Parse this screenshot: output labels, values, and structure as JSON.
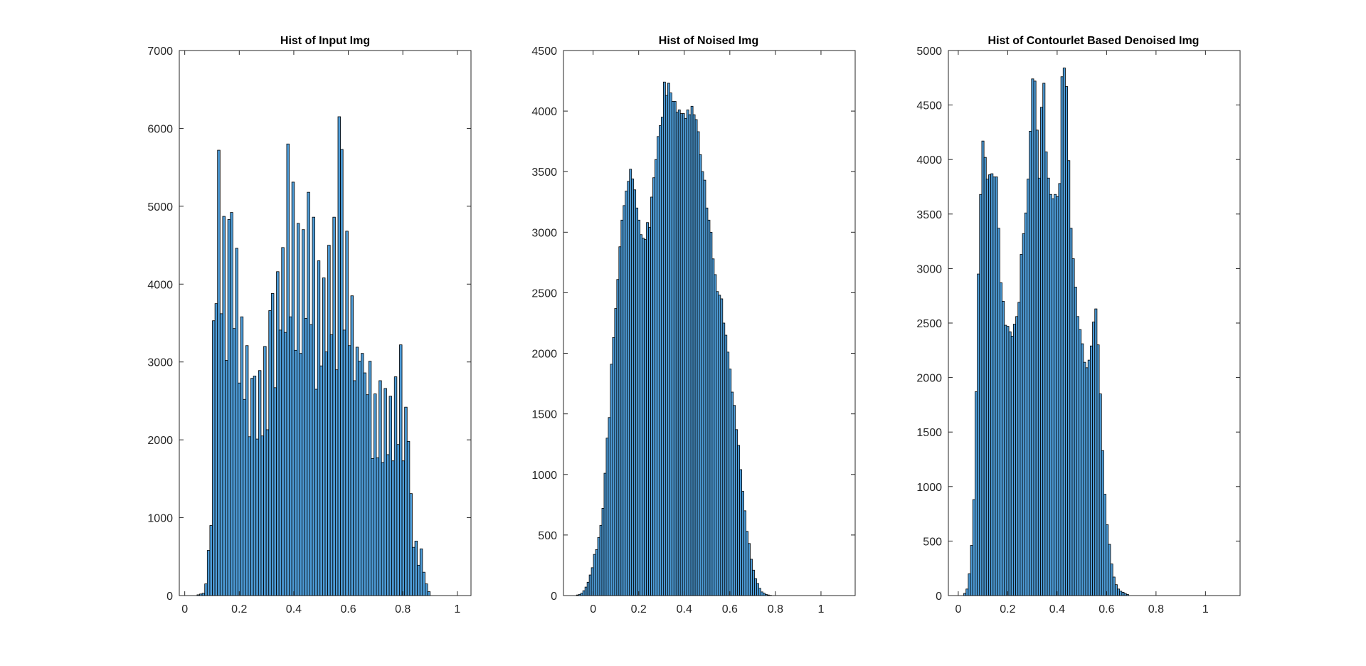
{
  "chart_data": [
    {
      "type": "bar",
      "title": "Hist of Input Img",
      "xlim": [
        -0.02,
        1.05
      ],
      "ylim": [
        0,
        7000
      ],
      "xticks": [
        0,
        0.2,
        0.4,
        0.6,
        0.8,
        1
      ],
      "xtick_labels": [
        "0",
        "0.2",
        "0.4",
        "0.6",
        "0.8",
        "1"
      ],
      "yticks": [
        0,
        1000,
        2000,
        3000,
        4000,
        5000,
        6000,
        7000
      ],
      "ytick_labels": [
        "0",
        "1000",
        "2000",
        "3000",
        "4000",
        "5000",
        "6000",
        "7000"
      ],
      "bin_start": 0.045,
      "bin_width": 0.0094,
      "values": [
        10,
        20,
        30,
        150,
        580,
        900,
        3530,
        3750,
        5720,
        3620,
        4870,
        3020,
        4830,
        4920,
        3430,
        4460,
        2730,
        3580,
        2520,
        3210,
        2040,
        2790,
        2820,
        2010,
        2890,
        2050,
        3200,
        2130,
        3660,
        3880,
        2670,
        4160,
        3410,
        4470,
        3380,
        5800,
        3580,
        5310,
        3150,
        4780,
        3110,
        4700,
        3560,
        5180,
        3480,
        4860,
        2650,
        4300,
        2950,
        4080,
        3130,
        4500,
        3350,
        4860,
        2900,
        6150,
        5730,
        3410,
        4680,
        3210,
        3850,
        2760,
        3190,
        3010,
        3110,
        2860,
        2580,
        3010,
        1760,
        2590,
        1770,
        2760,
        1710,
        2660,
        1810,
        2560,
        1730,
        2810,
        1940,
        3220,
        1730,
        2420,
        1980,
        1310,
        620,
        700,
        390,
        600,
        300,
        150,
        50
      ]
    },
    {
      "type": "bar",
      "title": "Hist of Noised Img",
      "xlim": [
        -0.13,
        1.15
      ],
      "ylim": [
        0,
        4500
      ],
      "xticks": [
        0,
        0.2,
        0.4,
        0.6,
        0.8,
        1
      ],
      "xtick_labels": [
        "0",
        "0.2",
        "0.4",
        "0.6",
        "0.8",
        "1"
      ],
      "yticks": [
        0,
        500,
        1000,
        1500,
        2000,
        2500,
        3000,
        3500,
        4000,
        4500
      ],
      "ytick_labels": [
        "0",
        "500",
        "1000",
        "1500",
        "2000",
        "2500",
        "3000",
        "3500",
        "4000",
        "4500"
      ],
      "bin_start": -0.073,
      "bin_width": 0.0093,
      "values": [
        5,
        10,
        20,
        40,
        70,
        110,
        170,
        230,
        340,
        380,
        480,
        580,
        720,
        1010,
        1300,
        1470,
        1910,
        2130,
        2370,
        2610,
        2880,
        3100,
        3220,
        3340,
        3420,
        3520,
        3440,
        3350,
        3200,
        3100,
        2980,
        2950,
        2940,
        3080,
        3040,
        3290,
        3450,
        3600,
        3790,
        3880,
        3950,
        4240,
        4130,
        4230,
        4150,
        4080,
        4080,
        3990,
        4010,
        3980,
        3980,
        3940,
        4010,
        3970,
        4040,
        3970,
        3930,
        3830,
        3640,
        3500,
        3430,
        3200,
        3100,
        3000,
        2780,
        2650,
        2510,
        2480,
        2450,
        2250,
        2150,
        2010,
        1870,
        1680,
        1570,
        1370,
        1240,
        1040,
        860,
        700,
        530,
        430,
        300,
        210,
        140,
        100,
        60,
        30,
        20,
        10,
        5,
        2
      ]
    },
    {
      "type": "bar",
      "title": "Hist of Contourlet Based Denoised Img",
      "xlim": [
        -0.04,
        1.14
      ],
      "ylim": [
        0,
        5000
      ],
      "xticks": [
        0,
        0.2,
        0.4,
        0.6,
        0.8,
        1
      ],
      "xtick_labels": [
        "0",
        "0.2",
        "0.4",
        "0.6",
        "0.8",
        "1"
      ],
      "yticks": [
        0,
        500,
        1000,
        1500,
        2000,
        2500,
        3000,
        3500,
        4000,
        4500,
        5000
      ],
      "ytick_labels": [
        "0",
        "500",
        "1000",
        "1500",
        "2000",
        "2500",
        "3000",
        "3500",
        "4000",
        "4500",
        "5000"
      ],
      "bin_start": 0.022,
      "bin_width": 0.00914,
      "values": [
        20,
        60,
        200,
        460,
        880,
        1870,
        2950,
        3680,
        4170,
        4020,
        3820,
        3860,
        3870,
        3840,
        3840,
        3370,
        2870,
        2700,
        2480,
        2470,
        2420,
        2380,
        2490,
        2560,
        2690,
        3130,
        3320,
        3510,
        3820,
        4260,
        4740,
        4720,
        4270,
        3830,
        4480,
        4700,
        4070,
        3830,
        3680,
        3640,
        3680,
        3660,
        3780,
        4760,
        4840,
        4670,
        3990,
        3370,
        3090,
        2830,
        2560,
        2440,
        2310,
        2140,
        2090,
        2160,
        2290,
        2510,
        2630,
        2300,
        1850,
        1330,
        930,
        650,
        470,
        290,
        170,
        100,
        60,
        40,
        30,
        20,
        10
      ]
    }
  ]
}
